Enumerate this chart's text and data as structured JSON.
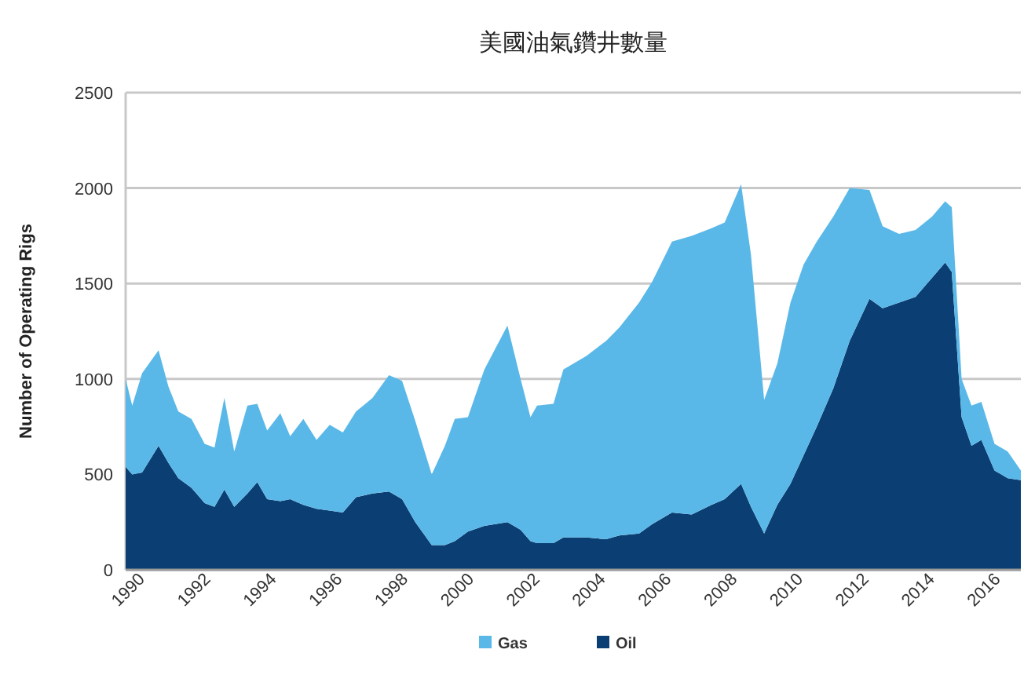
{
  "chart_data": {
    "type": "area",
    "title": "美國油氣鑽井數量",
    "ylabel": "Number of Operating Rigs",
    "stacked": true,
    "grid": "y",
    "legend": "bottom",
    "x": [
      1990.0,
      1990.2,
      1990.5,
      1991.0,
      1991.3,
      1991.6,
      1992.0,
      1992.4,
      1992.7,
      1993.0,
      1993.3,
      1993.7,
      1994.0,
      1994.3,
      1994.7,
      1995.0,
      1995.4,
      1995.8,
      1996.2,
      1996.6,
      1997.0,
      1997.5,
      1998.0,
      1998.4,
      1998.8,
      1999.3,
      1999.7,
      2000.0,
      2000.4,
      2000.9,
      2001.6,
      2002.0,
      2002.3,
      2002.5,
      2003.0,
      2003.3,
      2004.0,
      2004.6,
      2005.0,
      2005.6,
      2006.0,
      2006.6,
      2007.2,
      2007.8,
      2008.2,
      2008.7,
      2009.0,
      2009.4,
      2009.8,
      2010.2,
      2010.6,
      2011.0,
      2011.5,
      2012.0,
      2012.6,
      2013.0,
      2013.5,
      2014.0,
      2014.5,
      2014.9,
      2015.1,
      2015.4,
      2015.7,
      2016.0,
      2016.4,
      2016.8,
      2017.2
    ],
    "series": [
      {
        "name": "Oil",
        "color": "#0b3f73",
        "values": [
          540,
          500,
          510,
          650,
          560,
          480,
          430,
          350,
          330,
          420,
          330,
          400,
          460,
          370,
          360,
          370,
          340,
          320,
          310,
          300,
          380,
          400,
          410,
          370,
          250,
          130,
          130,
          150,
          200,
          230,
          250,
          210,
          150,
          140,
          140,
          170,
          170,
          160,
          180,
          190,
          240,
          300,
          290,
          340,
          370,
          450,
          330,
          190,
          340,
          450,
          600,
          750,
          950,
          1200,
          1420,
          1370,
          1400,
          1430,
          1530,
          1610,
          1560,
          800,
          650,
          680,
          520,
          480,
          470
        ]
      },
      {
        "name": "Gas",
        "color": "#5ab8e8",
        "values": [
          460,
          360,
          520,
          500,
          400,
          350,
          360,
          310,
          310,
          480,
          290,
          460,
          410,
          360,
          460,
          330,
          450,
          360,
          450,
          420,
          450,
          500,
          610,
          620,
          530,
          370,
          520,
          640,
          600,
          820,
          1030,
          790,
          650,
          720,
          730,
          880,
          950,
          1040,
          1090,
          1210,
          1270,
          1420,
          1460,
          1450,
          1450,
          1570,
          1320,
          700,
          740,
          950,
          1000,
          970,
          900,
          800,
          570,
          430,
          360,
          350,
          320,
          320,
          340,
          200,
          210,
          200,
          140,
          140,
          50
        ]
      }
    ],
    "xlim": [
      1990,
      2017.2
    ],
    "xticks": [
      1990,
      1992,
      1994,
      1996,
      1998,
      2000,
      2002,
      2004,
      2006,
      2008,
      2010,
      2012,
      2014,
      2016
    ],
    "ylim": [
      0,
      2500
    ],
    "yticks": [
      0,
      500,
      1000,
      1500,
      2000,
      2500
    ]
  }
}
